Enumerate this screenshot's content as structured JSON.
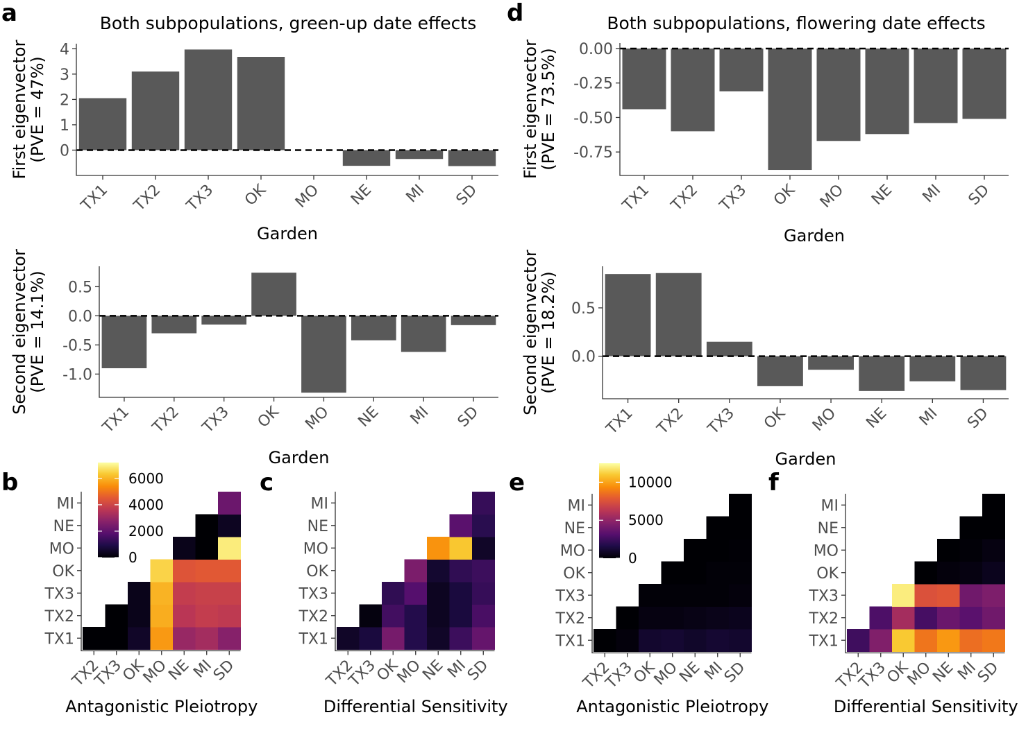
{
  "panel_letters": {
    "a": "a",
    "b": "b",
    "c": "c",
    "d": "d",
    "e": "e",
    "f": "f"
  },
  "chart_data": [
    {
      "id": "a1",
      "type": "bar",
      "title": "Both subpopulations, green-up date effects",
      "ylabel_line1": "First eigenvector",
      "ylabel_line2": "(PVE = 47%)",
      "xlabel": "Garden",
      "categories": [
        "TX1",
        "TX2",
        "TX3",
        "OK",
        "MO",
        "NE",
        "MI",
        "SD"
      ],
      "values": [
        2.05,
        3.1,
        3.97,
        3.68,
        0.0,
        -0.62,
        -0.35,
        -0.63
      ],
      "ylim": [
        -1.0,
        4.2
      ],
      "yticks": [
        0,
        1,
        2,
        3,
        4
      ],
      "ytick_labels": [
        "0",
        "1",
        "2",
        "3",
        "4"
      ],
      "bar_color": "#595959",
      "reference_line": 0
    },
    {
      "id": "a2",
      "type": "bar",
      "title": "",
      "ylabel_line1": "Second eigenvector",
      "ylabel_line2": "(PVE = 14.1%)",
      "xlabel": "Garden",
      "categories": [
        "TX1",
        "TX2",
        "TX3",
        "OK",
        "MO",
        "NE",
        "MI",
        "SD"
      ],
      "values": [
        -0.9,
        -0.3,
        -0.15,
        0.74,
        -1.32,
        -0.42,
        -0.62,
        -0.16
      ],
      "ylim": [
        -1.4,
        0.85
      ],
      "yticks": [
        0.5,
        0.0,
        -0.5,
        -1.0
      ],
      "ytick_labels": [
        "0.5",
        "0.0",
        "-0.5",
        "-1.0"
      ],
      "bar_color": "#595959",
      "reference_line": 0
    },
    {
      "id": "d1",
      "type": "bar",
      "title": "Both subpopulations, flowering date effects",
      "ylabel_line1": "First eigenvector",
      "ylabel_line2": "(PVE = 73.5%)",
      "xlabel": "Garden",
      "categories": [
        "TX1",
        "TX2",
        "TX3",
        "OK",
        "MO",
        "NE",
        "MI",
        "SD"
      ],
      "values": [
        -0.44,
        -0.6,
        -0.31,
        -0.88,
        -0.67,
        -0.62,
        -0.54,
        -0.51
      ],
      "ylim": [
        -0.92,
        0.04
      ],
      "yticks": [
        0.0,
        -0.25,
        -0.5,
        -0.75
      ],
      "ytick_labels": [
        "0.00",
        "-0.25",
        "-0.50",
        "-0.75"
      ],
      "bar_color": "#595959",
      "reference_line": 0
    },
    {
      "id": "d2",
      "type": "bar",
      "title": "",
      "ylabel_line1": "Second eigenvector",
      "ylabel_line2": "(PVE = 18.2%)",
      "xlabel": "Garden",
      "categories": [
        "TX1",
        "TX2",
        "TX3",
        "OK",
        "MO",
        "NE",
        "MI",
        "SD"
      ],
      "values": [
        0.85,
        0.86,
        0.15,
        -0.31,
        -0.14,
        -0.36,
        -0.26,
        -0.35
      ],
      "ylim": [
        -0.44,
        0.93
      ],
      "yticks": [
        0.5,
        0.0
      ],
      "ytick_labels": [
        "0.5",
        "0.0"
      ],
      "bar_color": "#595959",
      "reference_line": 0
    },
    {
      "id": "b",
      "type": "heatmap",
      "xlabel": "Antagonistic Pleiotropy",
      "x_categories": [
        "TX2",
        "TX3",
        "OK",
        "MO",
        "NE",
        "MI",
        "SD"
      ],
      "y_categories": [
        "TX1",
        "TX2",
        "TX3",
        "OK",
        "MO",
        "NE",
        "MI"
      ],
      "values": [
        [
          0,
          0,
          500,
          5600,
          3000,
          3200,
          2700
        ],
        [
          null,
          0,
          300,
          5900,
          3600,
          3800,
          3700
        ],
        [
          null,
          null,
          300,
          6000,
          3800,
          3900,
          3900
        ],
        [
          null,
          null,
          null,
          6500,
          4400,
          4500,
          4500
        ],
        [
          null,
          null,
          null,
          null,
          300,
          0,
          6900
        ],
        [
          null,
          null,
          null,
          null,
          null,
          0,
          400
        ],
        [
          null,
          null,
          null,
          null,
          null,
          null,
          2200
        ]
      ],
      "colorbar_max": 7200,
      "colorbar_ticks": [
        6000,
        4000,
        2000,
        0
      ],
      "colorbar_labels": [
        "6000",
        "4000",
        "2000",
        "0"
      ],
      "colormap": "inferno"
    },
    {
      "id": "c",
      "type": "heatmap",
      "xlabel": "Differential Sensitivity",
      "x_categories": [
        "TX2",
        "TX3",
        "OK",
        "MO",
        "NE",
        "MI",
        "SD"
      ],
      "y_categories": [
        "TX1",
        "TX2",
        "TX3",
        "OK",
        "MO",
        "NE",
        "MI"
      ],
      "values": [
        [
          500,
          800,
          2400,
          1000,
          500,
          1400,
          2100
        ],
        [
          null,
          150,
          1500,
          1000,
          400,
          800,
          1600
        ],
        [
          null,
          null,
          1200,
          1800,
          400,
          800,
          1300
        ],
        [
          null,
          null,
          null,
          2500,
          600,
          1200,
          1400
        ],
        [
          null,
          null,
          null,
          null,
          5500,
          6300,
          500
        ],
        [
          null,
          null,
          null,
          null,
          null,
          1900,
          1100
        ],
        [
          null,
          null,
          null,
          null,
          null,
          null,
          1300
        ]
      ],
      "colorbar_max": 7200,
      "colormap": "inferno"
    },
    {
      "id": "e",
      "type": "heatmap",
      "xlabel": "Antagonistic Pleiotropy",
      "x_categories": [
        "TX2",
        "TX3",
        "OK",
        "MO",
        "NE",
        "MI",
        "SD"
      ],
      "y_categories": [
        "TX1",
        "TX2",
        "TX3",
        "OK",
        "MO",
        "NE",
        "MI"
      ],
      "values": [
        [
          0,
          200,
          1000,
          1100,
          900,
          1100,
          1000
        ],
        [
          null,
          0,
          300,
          300,
          400,
          500,
          600
        ],
        [
          null,
          null,
          100,
          100,
          100,
          100,
          200
        ],
        [
          null,
          null,
          null,
          0,
          0,
          100,
          100
        ],
        [
          null,
          null,
          null,
          null,
          0,
          0,
          50
        ],
        [
          null,
          null,
          null,
          null,
          null,
          0,
          0
        ],
        [
          null,
          null,
          null,
          null,
          null,
          null,
          0
        ]
      ],
      "colorbar_max": 12500,
      "colorbar_ticks": [
        10000,
        5000,
        0
      ],
      "colorbar_labels": [
        "10000",
        "5000",
        "0"
      ],
      "colormap": "inferno"
    },
    {
      "id": "f",
      "type": "heatmap",
      "xlabel": "Differential Sensitivity",
      "x_categories": [
        "TX2",
        "TX3",
        "OK",
        "MO",
        "NE",
        "MI",
        "SD"
      ],
      "y_categories": [
        "TX1",
        "TX2",
        "TX3",
        "OK",
        "MO",
        "NE",
        "MI"
      ],
      "values": [
        [
          2500,
          4500,
          11000,
          8700,
          9700,
          8500,
          8800
        ],
        [
          null,
          2900,
          5600,
          2700,
          3800,
          3300,
          4000
        ],
        [
          null,
          null,
          12000,
          7500,
          7700,
          4000,
          4400
        ],
        [
          null,
          null,
          null,
          0,
          200,
          300,
          600
        ],
        [
          null,
          null,
          null,
          null,
          0,
          100,
          300
        ],
        [
          null,
          null,
          null,
          null,
          null,
          0,
          0
        ],
        [
          null,
          null,
          null,
          null,
          null,
          null,
          0
        ]
      ],
      "colorbar_max": 12500,
      "colormap": "inferno"
    }
  ]
}
